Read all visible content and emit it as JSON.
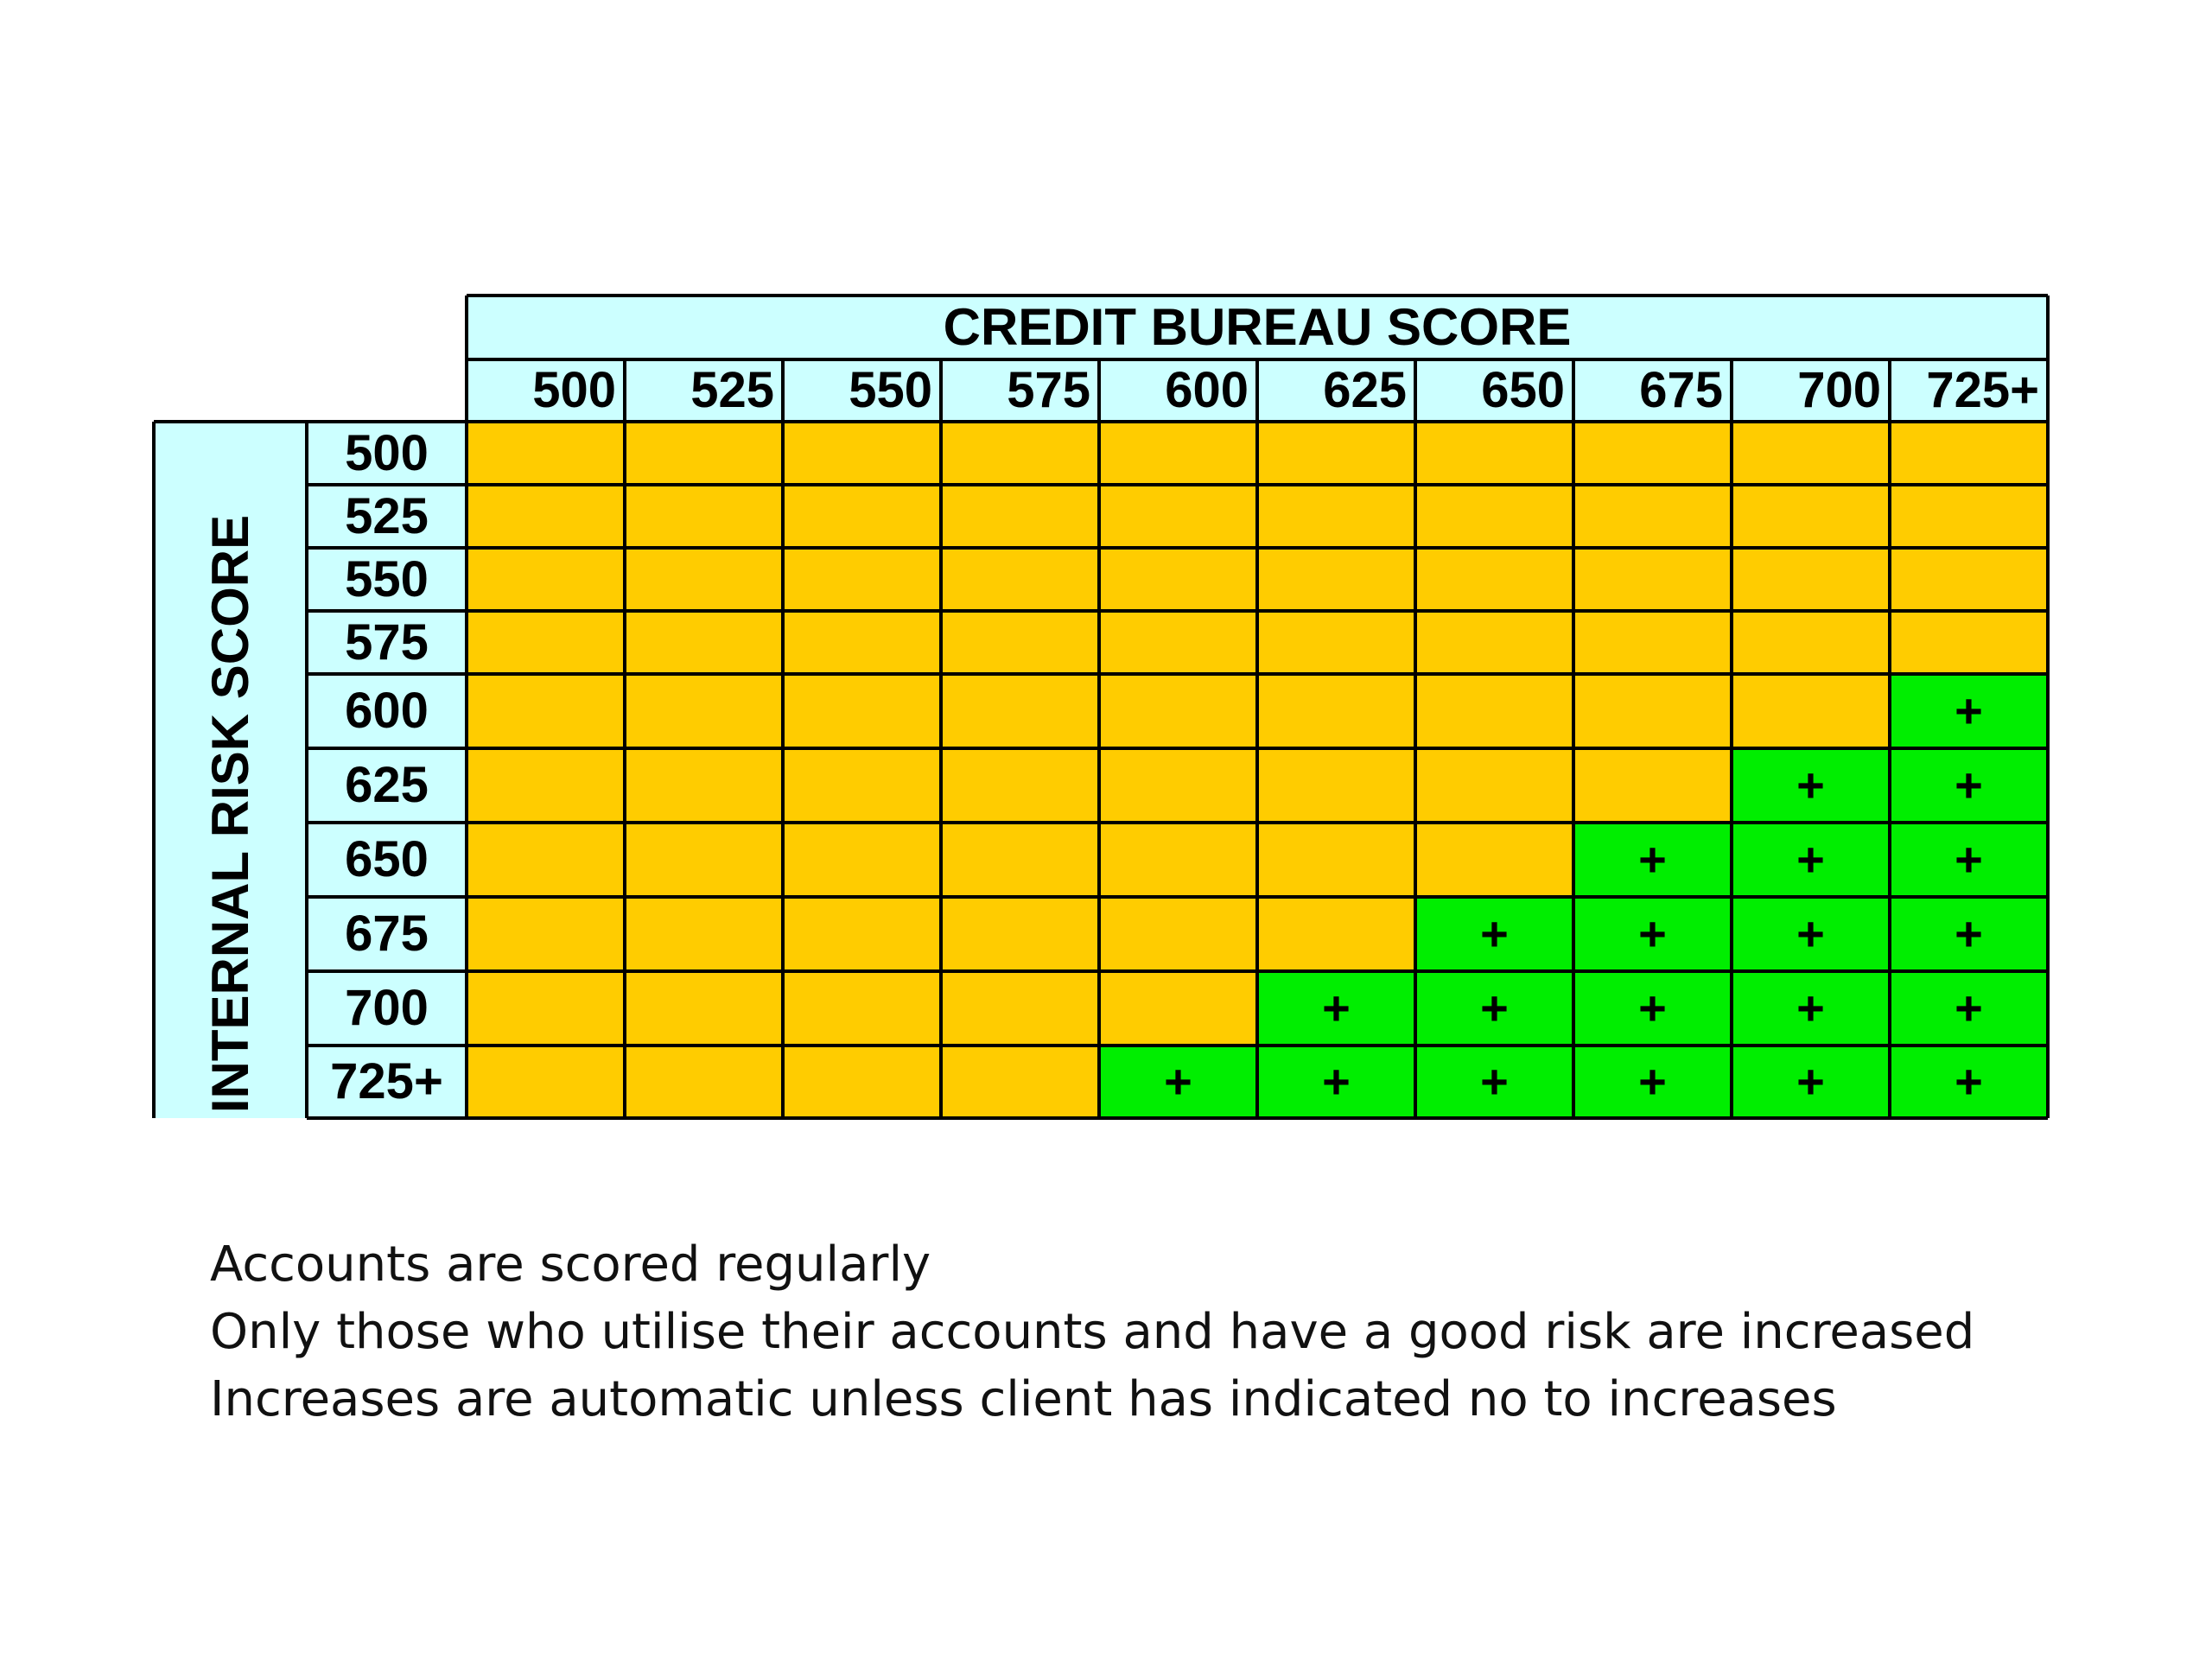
{
  "table": {
    "column_header_title": "CREDIT BUREAU SCORE",
    "row_header_title": "INTERNAL RISK SCORE",
    "columns": [
      "500",
      "525",
      "550",
      "575",
      "600",
      "625",
      "650",
      "675",
      "700",
      "725+"
    ],
    "rows": [
      "500",
      "525",
      "550",
      "575",
      "600",
      "625",
      "650",
      "675",
      "700",
      "725+"
    ],
    "increase_marker": "+",
    "cells": [
      [
        "",
        "",
        "",
        "",
        "",
        "",
        "",
        "",
        "",
        ""
      ],
      [
        "",
        "",
        "",
        "",
        "",
        "",
        "",
        "",
        "",
        ""
      ],
      [
        "",
        "",
        "",
        "",
        "",
        "",
        "",
        "",
        "",
        ""
      ],
      [
        "",
        "",
        "",
        "",
        "",
        "",
        "",
        "",
        "",
        ""
      ],
      [
        "",
        "",
        "",
        "",
        "",
        "",
        "",
        "",
        "",
        "+"
      ],
      [
        "",
        "",
        "",
        "",
        "",
        "",
        "",
        "",
        "+",
        "+"
      ],
      [
        "",
        "",
        "",
        "",
        "",
        "",
        "",
        "+",
        "+",
        "+"
      ],
      [
        "",
        "",
        "",
        "",
        "",
        "",
        "+",
        "+",
        "+",
        "+"
      ],
      [
        "",
        "",
        "",
        "",
        "",
        "+",
        "+",
        "+",
        "+",
        "+"
      ],
      [
        "",
        "",
        "",
        "",
        "+",
        "+",
        "+",
        "+",
        "+",
        "+"
      ]
    ]
  },
  "colors": {
    "header": "#ccffff",
    "no_increase": "#ffcc00",
    "increase": "#00ee00",
    "grid_line": "#000000"
  },
  "notes": [
    "Accounts are scored regularly",
    "Only those who utilise their accounts and have a good risk are increased",
    "Increases are automatic unless client has indicated no to increases"
  ]
}
